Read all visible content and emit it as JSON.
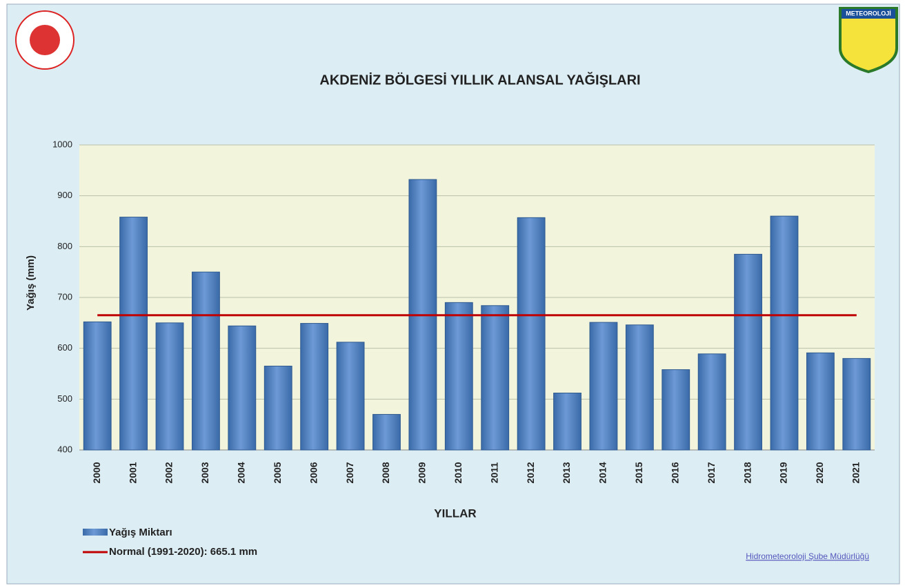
{
  "chart_data": {
    "type": "bar",
    "title": "AKDENİZ BÖLGESİ  YILLIK ALANSAL YAĞIŞLARI",
    "y_label": "Yağış (mm)",
    "x_label": "YILLAR",
    "categories": [
      "2000",
      "2001",
      "2002",
      "2003",
      "2004",
      "2005",
      "2006",
      "2007",
      "2008",
      "2009",
      "2010",
      "2011",
      "2012",
      "2013",
      "2014",
      "2015",
      "2016",
      "2017",
      "2018",
      "2019",
      "2020",
      "2021"
    ],
    "series": [
      {
        "name": "Yağış Miktarı",
        "color": "#4f81bd",
        "values": [
          652,
          858,
          650,
          750,
          644,
          565,
          649,
          612,
          470,
          932,
          690,
          684,
          857,
          512,
          651,
          646,
          558,
          589,
          785,
          860,
          591,
          580
        ]
      }
    ],
    "reference_line": {
      "name": "Normal (1991-2020): 665.1 mm",
      "value": 665.1,
      "color": "#c00000"
    },
    "ylim": [
      400,
      1000
    ],
    "yticks": [
      400,
      500,
      600,
      700,
      800,
      900,
      1000
    ],
    "grid": true,
    "logo_text": "METEOROLOJİ",
    "footer": "Hidrometeoroloji Şube Müdürlüğü"
  }
}
